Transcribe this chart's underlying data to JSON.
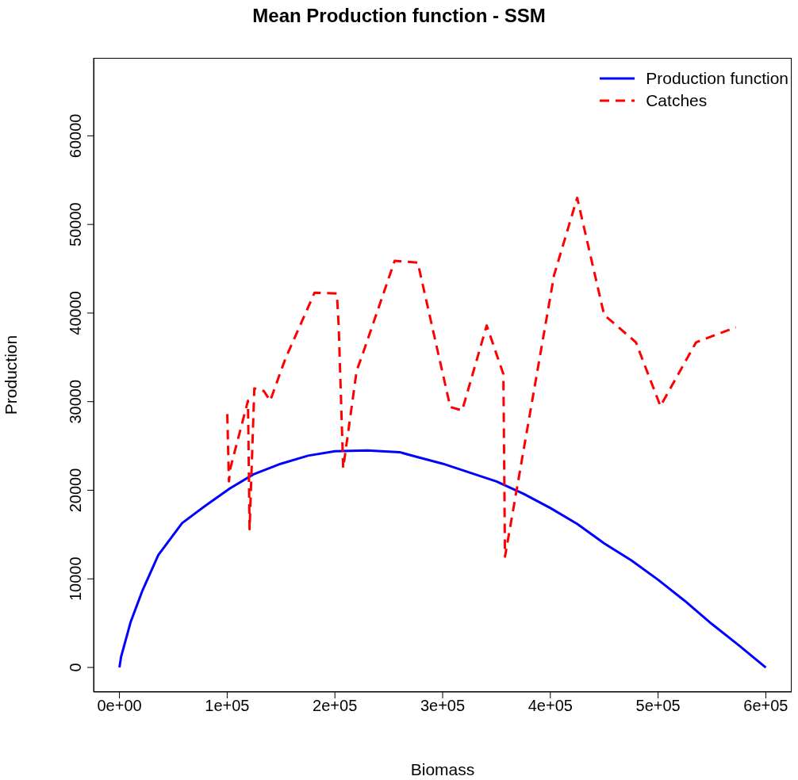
{
  "chart_data": {
    "type": "line",
    "title": "Mean Production function - SSM",
    "xlabel": "Biomass",
    "ylabel": "Production",
    "xlim": [
      -24000,
      624000
    ],
    "xticks": [
      {
        "value": 0,
        "label": "0e+00"
      },
      {
        "value": 100000,
        "label": "1e+05"
      },
      {
        "value": 200000,
        "label": "2e+05"
      },
      {
        "value": 300000,
        "label": "3e+05"
      },
      {
        "value": 400000,
        "label": "4e+05"
      },
      {
        "value": 500000,
        "label": "5e+05"
      },
      {
        "value": 600000,
        "label": "6e+05"
      }
    ],
    "ylim": [
      -2770,
      68800
    ],
    "yticks": [
      0,
      10000,
      20000,
      30000,
      40000,
      50000,
      60000
    ],
    "grid": false,
    "legend": "top right",
    "marker": "none",
    "series": [
      {
        "name": "Production function",
        "color": "#0000ff",
        "line_style": "solid",
        "x": [
          0,
          1500,
          10300,
          21400,
          36100,
          58200,
          80300,
          102400,
          124400,
          150000,
          175000,
          200000,
          230000,
          260000,
          275000,
          300000,
          325000,
          350000,
          375000,
          400000,
          425000,
          450000,
          475000,
          500000,
          525000,
          550000,
          575000,
          600000
        ],
        "values": [
          0,
          1200,
          5100,
          8700,
          12700,
          16300,
          18300,
          20200,
          21800,
          23000,
          23900,
          24400,
          24500,
          24300,
          23800,
          23000,
          22000,
          21000,
          19600,
          18000,
          16200,
          14000,
          12100,
          9900,
          7500,
          4900,
          2500,
          0
        ]
      },
      {
        "name": "Catches",
        "color": "#ff0000",
        "line_style": "dashed",
        "x": [
          100100,
          101600,
          103000,
          119300,
          120800,
          125200,
          134000,
          139900,
          153900,
          181100,
          201800,
          203500,
          207700,
          220200,
          225300,
          255500,
          276900,
          307100,
          318100,
          340900,
          356400,
          357900,
          403500,
          424900,
          449900,
          479400,
          502200,
          535300,
          572200
        ],
        "values": [
          28600,
          21000,
          22500,
          30100,
          15600,
          31500,
          31200,
          30100,
          34800,
          42300,
          42200,
          38600,
          22500,
          33500,
          35200,
          45900,
          45700,
          29400,
          29000,
          38600,
          33100,
          12500,
          44300,
          53000,
          39800,
          36700,
          29500,
          36700,
          38400
        ]
      }
    ]
  }
}
